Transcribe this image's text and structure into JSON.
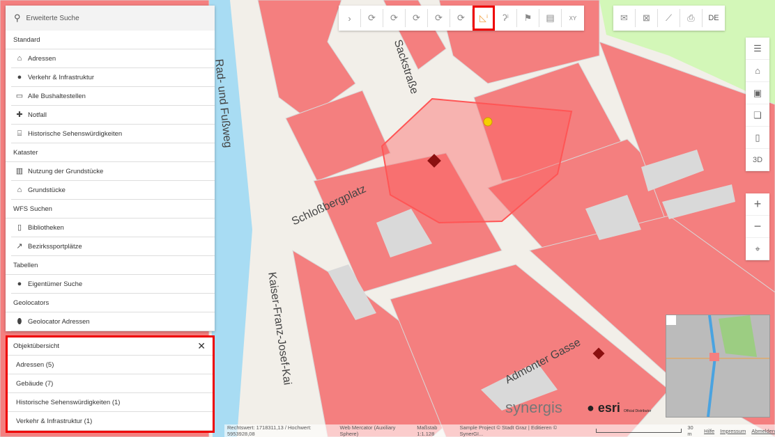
{
  "search": {
    "label": "Erweiterte Suche",
    "icon": "search-icon"
  },
  "sections": [
    {
      "title": "Standard",
      "items": [
        {
          "label": "Adressen",
          "icon": "home-icon"
        },
        {
          "label": "Verkehr & Infrastruktur",
          "icon": "traffic-icon"
        },
        {
          "label": "Alle Bushaltestellen",
          "icon": "bus-icon"
        },
        {
          "label": "Notfall",
          "icon": "first-aid-icon"
        },
        {
          "label": "Historische Sehenswürdigkeiten",
          "icon": "museum-icon"
        }
      ]
    },
    {
      "title": "Kataster",
      "items": [
        {
          "label": "Nutzung der Grundstücke",
          "icon": "building-icon"
        },
        {
          "label": "Grundstücke",
          "icon": "parcel-icon"
        }
      ]
    },
    {
      "title": "WFS Suchen",
      "items": [
        {
          "label": "Bibliotheken",
          "icon": "book-icon"
        },
        {
          "label": "Bezirkssportplätze",
          "icon": "runner-icon"
        }
      ]
    },
    {
      "title": "Tabellen",
      "items": [
        {
          "label": "Eigentümer Suche",
          "icon": "person-icon"
        }
      ]
    },
    {
      "title": "Geolocators",
      "items": [
        {
          "label": "Geolocator Adressen",
          "icon": "pin-icon"
        }
      ]
    }
  ],
  "objektuebersicht": {
    "title": "Objektübersicht",
    "rows": [
      "Adressen (5)",
      "Gebäude (7)",
      "Historische Sehenswürdigkeiten (1)",
      "Verkehr & Infrastruktur (1)"
    ]
  },
  "toolbar": {
    "tools": [
      "expand",
      "select-point",
      "select-line",
      "select-polygon",
      "select-circle",
      "select-freehand",
      "identify-polygon",
      "identify-line",
      "flag",
      "profile",
      "xy"
    ],
    "active": "identify-polygon",
    "right": [
      "mail",
      "clear-selection",
      "elevation-profile",
      "print"
    ],
    "language": "DE",
    "xy_label": "XY"
  },
  "right_tools": [
    "legend",
    "tags",
    "layers",
    "basemaps",
    "bookmarks",
    "3D"
  ],
  "right_tools_3d": "3D",
  "map_labels": {
    "street1": "Sackstraße",
    "street2": "Rad- und Fußweg",
    "street3": "Schloßbergplatz",
    "street4": "Kaiser-Franz-Josef-Kai",
    "street5": "Admonter Gasse"
  },
  "logos": {
    "synergis": "synergis",
    "esri": "esri",
    "esri_sub": "Official Distributor"
  },
  "status": {
    "coords": "Rechtswert: 1718311,13 / Hochwert: 5953928,08",
    "projection": "Web Mercator (Auxiliary Sphere)",
    "scale": "Maßstab 1:1.128",
    "copyright": "Sample Project © Stadt Graz | Editieren © SynerGI...",
    "scalebar": "30 m",
    "links": [
      "Hilfe",
      "Impressum",
      "Abmelden"
    ]
  },
  "colors": {
    "building": "#f47f7f",
    "water": "#a8dcf3",
    "selection": "#e00000",
    "highlight": "#f0a040"
  }
}
